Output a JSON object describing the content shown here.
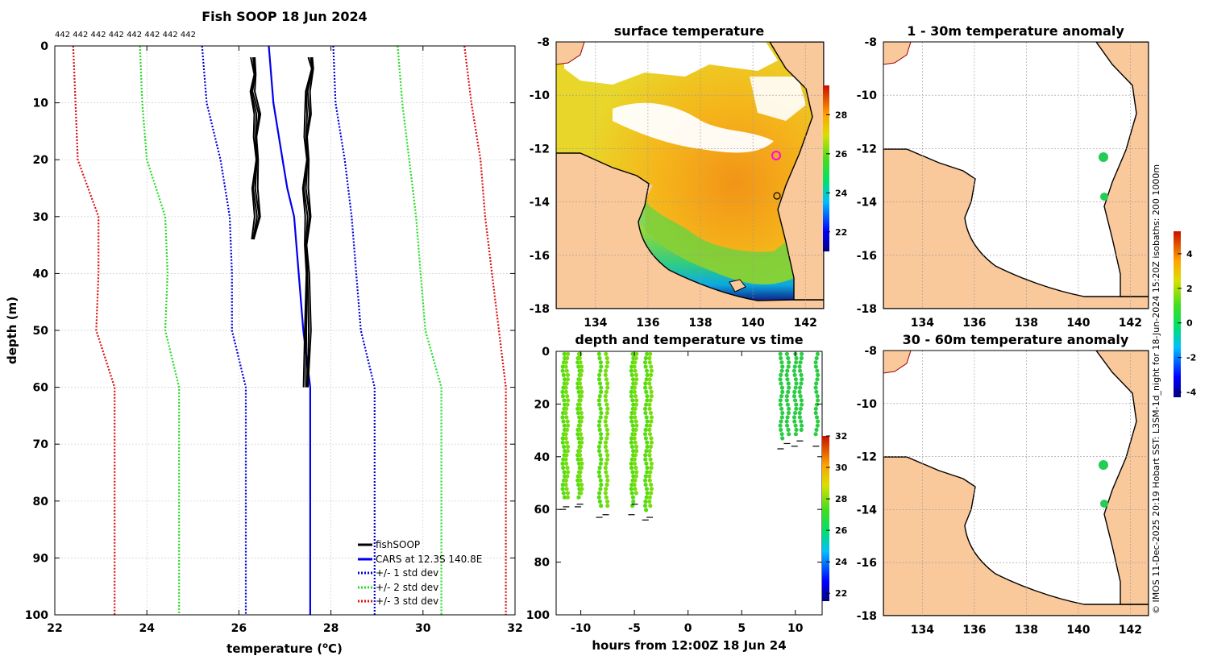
{
  "colors": {
    "fishsoop": "#000000",
    "cars": "#0000ee",
    "std1": "#0000dd",
    "std2": "#22dd22",
    "std3": "#dd1111",
    "land": "#f9c89b",
    "coast": "#000000",
    "grid": "#cccccc",
    "track": "#ff00ff",
    "anomaly_points": "#22cc55",
    "time_points": "#44dd22"
  },
  "profile": {
    "title": "Fish SOOP 18 Jun 2024",
    "counts_label": "442 442 442 442 442 442 442 442",
    "xlabel": "temperature (",
    "xlabel_sup": "o",
    "xlabel_end": "C)",
    "ylabel": "depth (m)",
    "xticks": [
      "22",
      "24",
      "26",
      "28",
      "30",
      "32"
    ],
    "yticks": [
      "0",
      "10",
      "20",
      "30",
      "40",
      "50",
      "60",
      "70",
      "80",
      "90",
      "100"
    ],
    "legend": [
      "fishSOOP",
      "CARS at 12.3S 140.8E",
      "+/- 1 std dev",
      "+/- 2 std dev",
      "+/- 3 std dev"
    ]
  },
  "sst_map": {
    "title": "surface temperature",
    "xticks": [
      "134",
      "136",
      "138",
      "140",
      "142"
    ],
    "yticks": [
      "-8",
      "-10",
      "-12",
      "-14",
      "-16",
      "-18"
    ],
    "colorbar_ticks": [
      "28",
      "26",
      "24",
      "22"
    ]
  },
  "anom1": {
    "title": "1 - 30m temperature anomaly",
    "xticks": [
      "134",
      "136",
      "138",
      "140",
      "142"
    ],
    "yticks": [
      "-8",
      "-10",
      "-12",
      "-14",
      "-16",
      "-18"
    ]
  },
  "anom2": {
    "title": "30 - 60m temperature anomaly",
    "xticks": [
      "134",
      "136",
      "138",
      "140",
      "142"
    ],
    "yticks": [
      "-8",
      "-10",
      "-12",
      "-14",
      "-16",
      "-18"
    ]
  },
  "anom_colorbar_ticks": [
    "4",
    "2",
    "0",
    "-2",
    "-4"
  ],
  "timeplot": {
    "title": "depth and temperature vs time",
    "xlabel": "hours from 12:00Z 18 Jun 24",
    "xticks": [
      "-10",
      "-5",
      "0",
      "5",
      "10"
    ],
    "yticks": [
      "0",
      "20",
      "40",
      "60",
      "80",
      "100"
    ],
    "colorbar_ticks": [
      "32",
      "30",
      "28",
      "26",
      "24",
      "22"
    ]
  },
  "side_text": "© IMOS 11-Dec-2025 20:19 Hobart SST: L3SM-1d_night for 18-Jun-2024 15:20Z isobaths: 200  1000m",
  "chart_data": [
    {
      "type": "line",
      "title": "Fish SOOP 18 Jun 2024",
      "xlabel": "temperature (oC)",
      "ylabel": "depth (m)",
      "xlim": [
        22,
        32
      ],
      "ylim": [
        100,
        0
      ],
      "series": [
        {
          "name": "CARS at 12.3S 140.8E",
          "x": [
            26.65,
            26.75,
            26.95,
            27.05,
            27.2,
            27.3,
            27.4,
            27.55,
            27.55,
            27.55
          ],
          "y": [
            0,
            10,
            20,
            25,
            30,
            40,
            50,
            60,
            80,
            100
          ]
        },
        {
          "name": "+/- 1 std dev low",
          "x": [
            25.2,
            25.3,
            25.6,
            25.8,
            25.85,
            25.85,
            26.15,
            26.15,
            26.15
          ],
          "y": [
            0,
            10,
            20,
            30,
            40,
            50,
            60,
            80,
            100
          ]
        },
        {
          "name": "+/- 1 std dev high",
          "x": [
            28.05,
            28.1,
            28.3,
            28.45,
            28.55,
            28.65,
            28.95,
            28.95,
            28.95
          ],
          "y": [
            0,
            10,
            20,
            30,
            40,
            50,
            60,
            80,
            100
          ]
        },
        {
          "name": "+/- 2 std dev low",
          "x": [
            23.85,
            23.9,
            24.0,
            24.4,
            24.45,
            24.4,
            24.7,
            24.7,
            24.7
          ],
          "y": [
            0,
            10,
            20,
            30,
            40,
            50,
            60,
            80,
            100
          ]
        },
        {
          "name": "+/- 2 std dev high",
          "x": [
            29.45,
            29.55,
            29.7,
            29.85,
            29.95,
            30.05,
            30.4,
            30.4,
            30.4
          ],
          "y": [
            0,
            10,
            20,
            30,
            40,
            50,
            60,
            80,
            100
          ]
        },
        {
          "name": "+/- 3 std dev low",
          "x": [
            22.4,
            22.45,
            22.5,
            22.95,
            22.95,
            22.9,
            23.3,
            23.3,
            23.3
          ],
          "y": [
            0,
            10,
            20,
            30,
            40,
            50,
            60,
            80,
            100
          ]
        },
        {
          "name": "+/- 3 std dev high",
          "x": [
            30.9,
            31.05,
            31.25,
            31.35,
            31.5,
            31.65,
            31.8,
            31.8,
            31.8
          ],
          "y": [
            0,
            10,
            20,
            30,
            40,
            50,
            60,
            80,
            100
          ]
        },
        {
          "name": "fishSOOP cast A",
          "x": [
            26.3,
            26.35,
            26.3,
            26.4,
            26.35,
            26.4,
            26.35,
            26.4,
            26.3
          ],
          "y": [
            2,
            5,
            8,
            12,
            16,
            20,
            25,
            30,
            34
          ]
        },
        {
          "name": "fishSOOP cast B",
          "x": [
            27.55,
            27.6,
            27.5,
            27.5,
            27.45,
            27.5,
            27.45,
            27.5,
            27.45,
            27.5,
            27.5,
            27.45
          ],
          "y": [
            2,
            4,
            8,
            12,
            16,
            20,
            25,
            30,
            35,
            40,
            50,
            60
          ]
        }
      ]
    },
    {
      "type": "heatmap",
      "title": "surface temperature",
      "xlim": [
        132.5,
        142.7
      ],
      "ylim": [
        -18,
        -8
      ],
      "colorbar_range": [
        21,
        29.5
      ],
      "markers": [
        {
          "lon": 140.9,
          "lat": -12.3
        },
        {
          "lon": 140.75,
          "lat": -13.8
        }
      ]
    },
    {
      "type": "scatter",
      "title": "depth and temperature vs time",
      "xlabel": "hours from 12:00Z 18 Jun 24",
      "xlim": [
        -12.3,
        12.5
      ],
      "ylim": [
        100,
        0
      ],
      "colorbar_range": [
        21.5,
        32
      ],
      "casts": [
        {
          "t": -11.6,
          "max_depth": 57
        },
        {
          "t": -11.3,
          "max_depth": 56
        },
        {
          "t": -10.2,
          "max_depth": 56
        },
        {
          "t": -10.0,
          "max_depth": 55
        },
        {
          "t": -8.2,
          "max_depth": 60
        },
        {
          "t": -7.6,
          "max_depth": 59
        },
        {
          "t": -5.2,
          "max_depth": 59
        },
        {
          "t": -4.9,
          "max_depth": 55
        },
        {
          "t": -3.9,
          "max_depth": 61
        },
        {
          "t": -3.5,
          "max_depth": 60
        },
        {
          "t": 8.7,
          "max_depth": 34
        },
        {
          "t": 9.3,
          "max_depth": 32
        },
        {
          "t": 10.0,
          "max_depth": 33
        },
        {
          "t": 10.5,
          "max_depth": 31
        },
        {
          "t": 12.0,
          "max_depth": 33
        }
      ]
    },
    {
      "type": "scatter",
      "title": "1 - 30m temperature anomaly",
      "xlim": [
        132.5,
        142.7
      ],
      "ylim": [
        -18,
        -8
      ],
      "colorbar_range": [
        -4.3,
        5.3
      ],
      "points": [
        {
          "lon": 141.0,
          "lat": -12.3,
          "anomaly": 0.2
        },
        {
          "lon": 141.0,
          "lat": -13.8,
          "anomaly": 0.1
        }
      ]
    },
    {
      "type": "scatter",
      "title": "30 - 60m temperature anomaly",
      "xlim": [
        132.5,
        142.7
      ],
      "ylim": [
        -18,
        -8
      ],
      "colorbar_range": [
        -4.3,
        5.3
      ],
      "points": [
        {
          "lon": 141.0,
          "lat": -12.3,
          "anomaly": 0.2
        },
        {
          "lon": 141.0,
          "lat": -13.8,
          "anomaly": 0.1
        }
      ]
    }
  ]
}
